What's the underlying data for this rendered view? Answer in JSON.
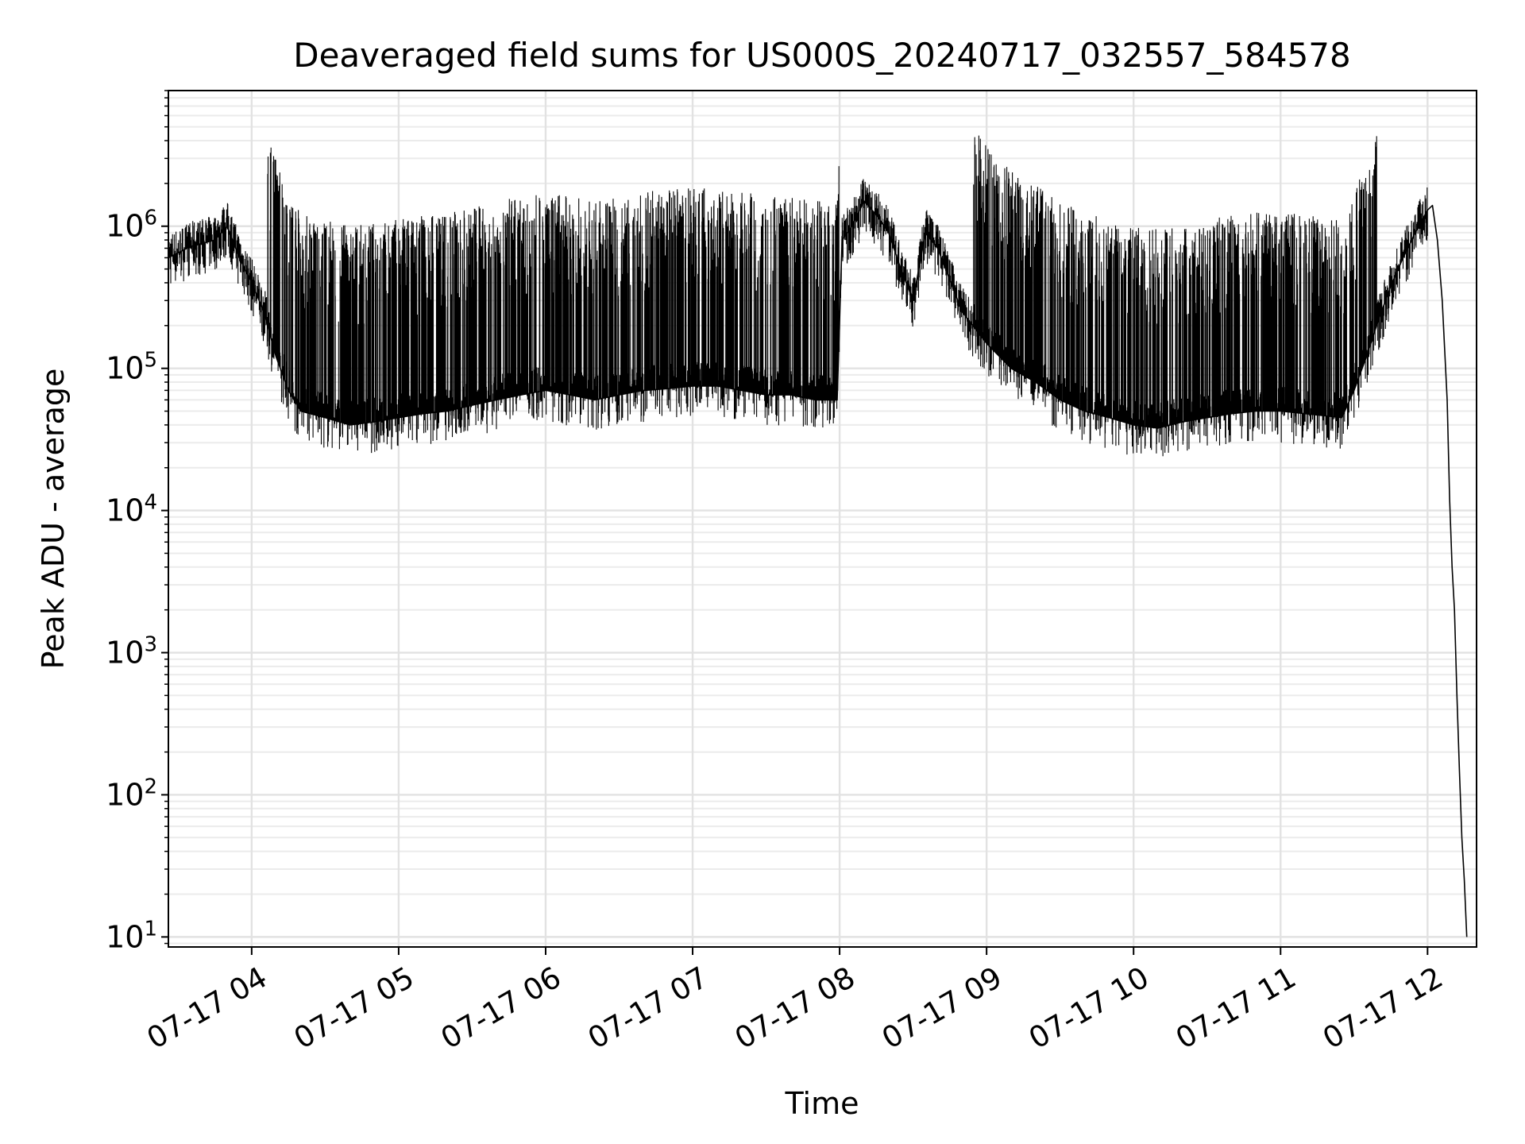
{
  "chart_data": {
    "type": "line",
    "title": "Deaveraged field sums for US000S_20240717_032557_584578",
    "xlabel": "Time",
    "ylabel": "Peak ADU - average",
    "yscale": "log",
    "ylim": [
      8.5,
      9000000
    ],
    "xlim": [
      "07-17 03:26",
      "07-17 12:20"
    ],
    "x_ticks": [
      "07-17 04",
      "07-17 05",
      "07-17 06",
      "07-17 07",
      "07-17 08",
      "07-17 09",
      "07-17 10",
      "07-17 11",
      "07-17 12"
    ],
    "y_ticks": [
      {
        "base": "10",
        "exp": "1"
      },
      {
        "base": "10",
        "exp": "2"
      },
      {
        "base": "10",
        "exp": "3"
      },
      {
        "base": "10",
        "exp": "4"
      },
      {
        "base": "10",
        "exp": "5"
      },
      {
        "base": "10",
        "exp": "6"
      }
    ],
    "grid": true,
    "line_color": "#000000",
    "series": [
      {
        "x": [
          "07-17 03:26",
          "07-17 03:35",
          "07-17 03:45",
          "07-17 03:50",
          "07-17 03:55",
          "07-17 04:00",
          "07-17 04:05",
          "07-17 04:10",
          "07-17 04:15",
          "07-17 04:20",
          "07-17 04:30",
          "07-17 04:40",
          "07-17 04:50",
          "07-17 05:00",
          "07-17 05:10",
          "07-17 05:20",
          "07-17 05:30",
          "07-17 05:40",
          "07-17 05:50",
          "07-17 06:00",
          "07-17 06:10",
          "07-17 06:20",
          "07-17 06:30",
          "07-17 06:40",
          "07-17 06:50",
          "07-17 07:00",
          "07-17 07:10",
          "07-17 07:20",
          "07-17 07:30",
          "07-17 07:40",
          "07-17 07:50",
          "07-17 07:59",
          "07-17 08:01",
          "07-17 08:05",
          "07-17 08:10",
          "07-17 08:15",
          "07-17 08:20",
          "07-17 08:25",
          "07-17 08:30",
          "07-17 08:35",
          "07-17 08:40",
          "07-17 08:50",
          "07-17 09:00",
          "07-17 09:10",
          "07-17 09:20",
          "07-17 09:30",
          "07-17 09:40",
          "07-17 09:50",
          "07-17 10:00",
          "07-17 10:10",
          "07-17 10:20",
          "07-17 10:30",
          "07-17 10:40",
          "07-17 10:50",
          "07-17 11:00",
          "07-17 11:10",
          "07-17 11:20",
          "07-17 11:25",
          "07-17 11:30",
          "07-17 11:35",
          "07-17 11:40",
          "07-17 11:45",
          "07-17 11:50",
          "07-17 11:55",
          "07-17 12:00",
          "07-17 12:02",
          "07-17 12:04",
          "07-17 12:06",
          "07-17 12:08",
          "07-17 12:09",
          "07-17 12:10",
          "07-17 12:11",
          "07-17 12:12",
          "07-17 12:13",
          "07-17 12:14",
          "07-17 12:15",
          "07-17 12:16"
        ],
        "y": [
          600000,
          720000,
          800000,
          1000000,
          600000,
          400000,
          250000,
          120000,
          70000,
          50000,
          45000,
          40000,
          42000,
          45000,
          48000,
          50000,
          55000,
          60000,
          65000,
          70000,
          65000,
          60000,
          65000,
          70000,
          72000,
          75000,
          75000,
          70000,
          65000,
          65000,
          60000,
          60000,
          800000,
          1000000,
          1500000,
          1200000,
          900000,
          500000,
          300000,
          900000,
          700000,
          250000,
          150000,
          100000,
          80000,
          60000,
          50000,
          45000,
          40000,
          38000,
          42000,
          45000,
          48000,
          50000,
          50000,
          48000,
          46000,
          45000,
          70000,
          120000,
          220000,
          380000,
          600000,
          900000,
          1300000,
          1400000,
          800000,
          300000,
          60000,
          12000,
          4000,
          2000,
          500,
          150,
          50,
          25,
          10
        ]
      }
    ]
  }
}
